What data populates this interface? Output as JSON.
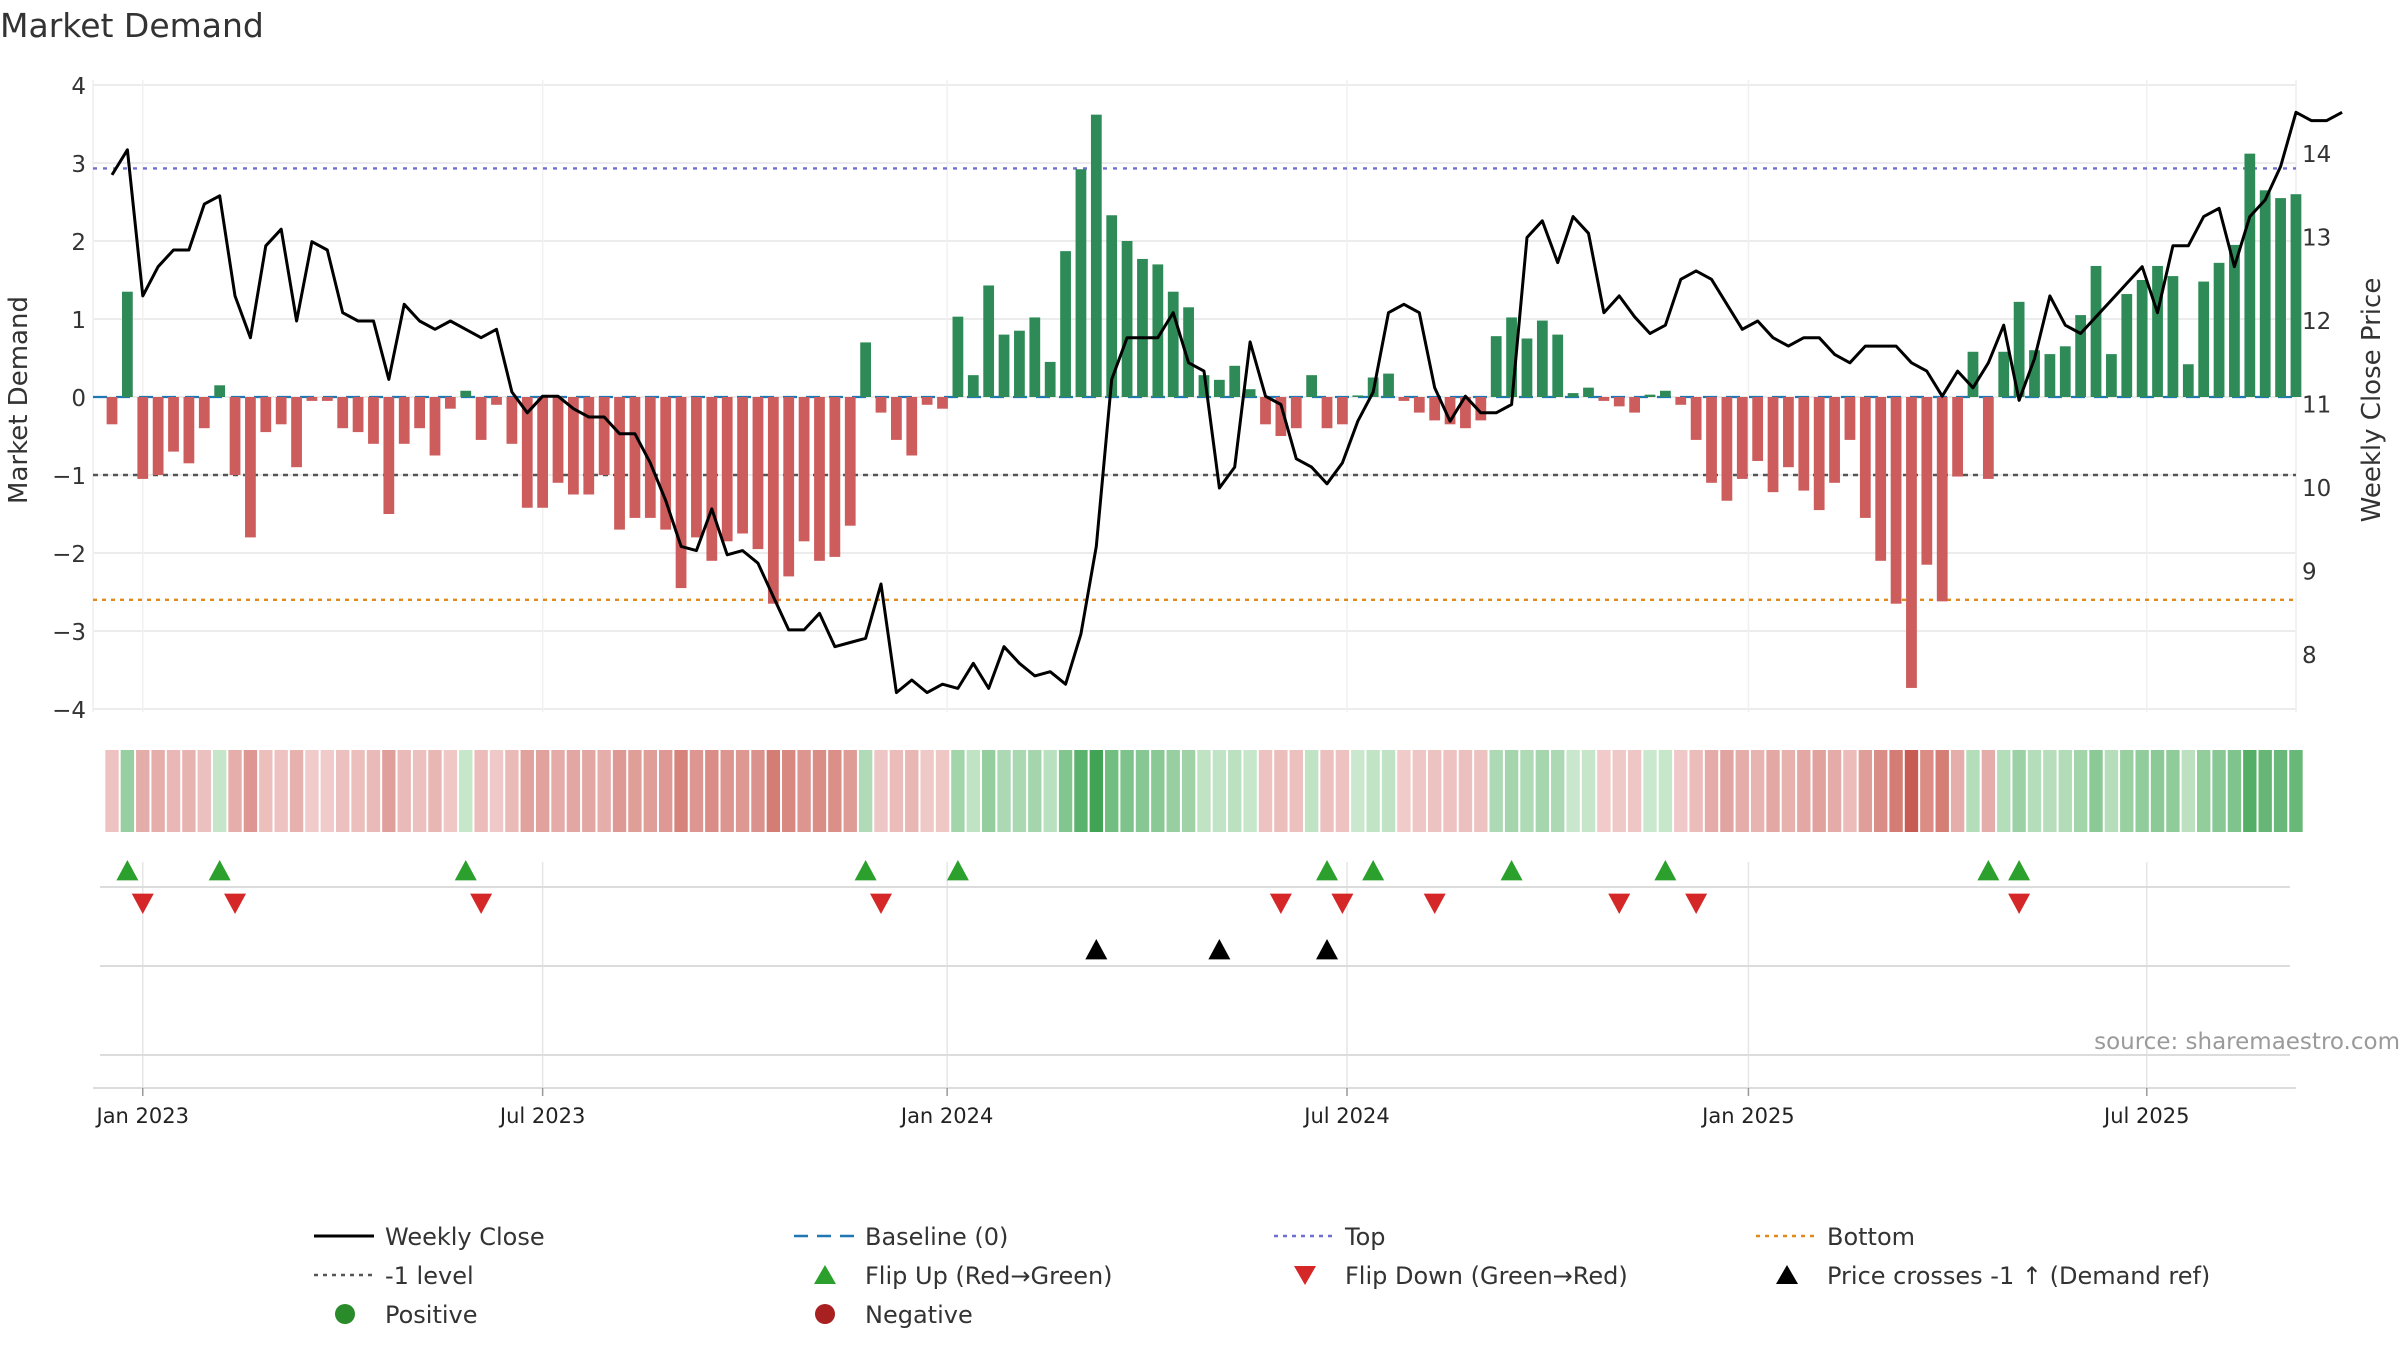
{
  "colors": {
    "positive": "#2e8b57",
    "negative": "#cd5c5c",
    "close": "#000000",
    "baseline": "#1f77b4",
    "top": "#6f6fd0",
    "bottom": "#e08a1e",
    "level": "#555555",
    "flip_up": "#2ca02c",
    "flip_down": "#d62728",
    "cross": "#000000",
    "grid": "#e6e6e6"
  },
  "chart_data": {
    "type": "bar",
    "title": "Market Demand",
    "ylabel": "Market Demand",
    "y2label": "Weekly Close Price",
    "ylim": [
      -4,
      4
    ],
    "yticks": [
      "4",
      "3",
      "2",
      "1",
      "0",
      "−1",
      "−2",
      "−3",
      "−4"
    ],
    "ytick_values": [
      4,
      3,
      2,
      1,
      0,
      -1,
      -2,
      -3,
      -4
    ],
    "y2lim": [
      7.1,
      14.8
    ],
    "y2ticks": [
      "14",
      "13",
      "12",
      "11",
      "10",
      "9",
      "8"
    ],
    "y2tick_values": [
      14,
      13,
      12,
      11,
      10,
      9,
      8
    ],
    "x_start": "2022-12-19",
    "xticks": [
      {
        "label": "Jan 2023",
        "week": 2
      },
      {
        "label": "Jul 2023",
        "week": 28
      },
      {
        "label": "Jan 2024",
        "week": 54.3
      },
      {
        "label": "Jul 2024",
        "week": 80.3
      },
      {
        "label": "Jan 2025",
        "week": 106.4
      },
      {
        "label": "Jul 2025",
        "week": 132.3
      }
    ],
    "hlines": [
      {
        "name": "Top",
        "value": 2.93
      },
      {
        "name": "Bottom",
        "value": -2.6
      },
      {
        "name": "-1 level",
        "value": -1
      },
      {
        "name": "Baseline (0)",
        "value": 0
      }
    ],
    "series": [
      {
        "name": "Market Demand",
        "type": "bar",
        "values": [
          -0.35,
          1.35,
          -1.05,
          -1.0,
          -0.7,
          -0.85,
          -0.4,
          0.15,
          -1.0,
          -1.8,
          -0.45,
          -0.35,
          -0.9,
          -0.05,
          -0.05,
          -0.4,
          -0.45,
          -0.6,
          -1.5,
          -0.6,
          -0.4,
          -0.75,
          -0.15,
          0.08,
          -0.55,
          -0.1,
          -0.6,
          -1.42,
          -1.42,
          -1.1,
          -1.25,
          -1.25,
          -1.0,
          -1.7,
          -1.55,
          -1.55,
          -1.7,
          -2.45,
          -1.8,
          -2.1,
          -1.85,
          -1.75,
          -1.95,
          -2.65,
          -2.3,
          -1.85,
          -2.1,
          -2.05,
          -1.65,
          0.7,
          -0.2,
          -0.55,
          -0.75,
          -0.1,
          -0.15,
          1.03,
          0.28,
          1.43,
          0.8,
          0.85,
          1.02,
          0.45,
          1.87,
          2.92,
          3.62,
          2.33,
          2.0,
          1.77,
          1.7,
          1.35,
          1.15,
          0.28,
          0.22,
          0.4,
          0.1,
          -0.35,
          -0.5,
          -0.4,
          0.28,
          -0.4,
          -0.35,
          0.02,
          0.25,
          0.3,
          -0.05,
          -0.2,
          -0.3,
          -0.35,
          -0.4,
          -0.3,
          0.78,
          1.02,
          0.75,
          0.98,
          0.8,
          0.05,
          0.12,
          -0.05,
          -0.12,
          -0.2,
          0.03,
          0.08,
          -0.1,
          -0.55,
          -1.1,
          -1.33,
          -1.05,
          -0.82,
          -1.22,
          -0.9,
          -1.2,
          -1.45,
          -1.1,
          -0.55,
          -1.55,
          -2.1,
          -2.65,
          -3.73,
          -2.15,
          -2.62,
          -1.02,
          0.58,
          -1.05,
          0.58,
          1.22,
          0.6,
          0.55,
          0.65,
          1.05,
          1.68,
          0.55,
          1.32,
          1.5,
          1.68,
          1.55,
          0.42,
          1.48,
          1.72,
          1.95,
          3.12,
          2.65,
          2.55,
          2.6
        ]
      },
      {
        "name": "Weekly Close",
        "type": "line",
        "axis": "y2",
        "values": [
          13.75,
          14.05,
          12.3,
          12.65,
          12.85,
          12.85,
          13.4,
          13.5,
          12.3,
          11.8,
          12.9,
          13.1,
          12.0,
          12.95,
          12.85,
          12.1,
          12.0,
          12.0,
          11.3,
          12.2,
          12.0,
          11.9,
          12.0,
          11.9,
          11.8,
          11.9,
          11.15,
          10.9,
          11.1,
          11.1,
          10.95,
          10.85,
          10.85,
          10.65,
          10.65,
          10.3,
          9.85,
          9.3,
          9.25,
          9.75,
          9.2,
          9.25,
          9.1,
          8.7,
          8.3,
          8.3,
          8.5,
          8.1,
          8.15,
          8.2,
          8.85,
          7.55,
          7.7,
          7.55,
          7.65,
          7.6,
          7.9,
          7.6,
          8.1,
          7.9,
          7.75,
          7.8,
          7.65,
          8.25,
          9.3,
          11.3,
          11.8,
          11.8,
          11.8,
          12.1,
          11.5,
          11.4,
          10.0,
          10.25,
          11.75,
          11.1,
          11.0,
          10.35,
          10.25,
          10.05,
          10.3,
          10.8,
          11.15,
          12.1,
          12.2,
          12.1,
          11.2,
          10.8,
          11.1,
          10.9,
          10.9,
          11.0,
          13.0,
          13.2,
          12.7,
          13.25,
          13.05,
          12.1,
          12.3,
          12.05,
          11.85,
          11.95,
          12.5,
          12.6,
          12.5,
          12.2,
          11.9,
          12.0,
          11.8,
          11.7,
          11.8,
          11.8,
          11.6,
          11.5,
          11.7,
          11.7,
          11.7,
          11.5,
          11.4,
          11.1,
          11.4,
          11.2,
          11.5,
          11.95,
          11.05,
          11.55,
          12.3,
          11.95,
          11.85,
          12.05,
          12.25,
          12.45,
          12.65,
          12.1,
          12.9,
          12.9,
          13.25,
          13.35,
          12.65,
          13.25,
          13.45,
          13.85,
          14.5,
          14.4,
          14.4,
          14.5
        ]
      }
    ],
    "flip_up_weeks": [
      1,
      7,
      23,
      49,
      55,
      79,
      82,
      91,
      101,
      122,
      124
    ],
    "flip_down_weeks": [
      2,
      8,
      24,
      50,
      76,
      80,
      86,
      98,
      103,
      124
    ],
    "cross_weeks": [
      64,
      72,
      79
    ],
    "legend": [
      {
        "label": "Weekly Close",
        "sym": "line"
      },
      {
        "label": "Baseline (0)",
        "sym": "dash"
      },
      {
        "label": "Top",
        "sym": "dot-top"
      },
      {
        "label": "Bottom",
        "sym": "dot-bottom"
      },
      {
        "label": "-1 level",
        "sym": "dot-level"
      },
      {
        "label": "Flip Up (Red→Green)",
        "sym": "tri-up"
      },
      {
        "label": "Flip Down (Green→Red)",
        "sym": "tri-down"
      },
      {
        "label": "Price crosses -1 ↑ (Demand ref)",
        "sym": "tri-cross"
      },
      {
        "label": "Positive",
        "sym": "dot-pos"
      },
      {
        "label": "Negative",
        "sym": "dot-neg"
      }
    ],
    "legend_position": "bottom",
    "source": "source: sharemaestro.com"
  }
}
